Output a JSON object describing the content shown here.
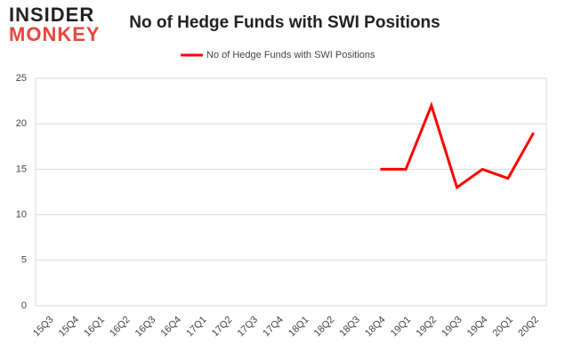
{
  "logo": {
    "top": "INSIDER",
    "bottom": "MONKEY"
  },
  "chart_data": {
    "type": "line",
    "title": "No of Hedge Funds with SWI Positions",
    "categories": [
      "15Q3",
      "15Q4",
      "16Q1",
      "16Q2",
      "16Q3",
      "16Q4",
      "17Q1",
      "17Q2",
      "17Q3",
      "17Q4",
      "18Q1",
      "18Q2",
      "18Q3",
      "18Q4",
      "19Q1",
      "19Q2",
      "19Q3",
      "19Q4",
      "20Q1",
      "20Q2"
    ],
    "series": [
      {
        "name": "No of Hedge Funds with SWI Positions",
        "color": "#ff0000",
        "values": [
          null,
          null,
          null,
          null,
          null,
          null,
          null,
          null,
          null,
          null,
          null,
          null,
          null,
          15,
          15,
          22,
          13,
          15,
          14,
          19
        ]
      }
    ],
    "ylim": [
      0,
      25
    ],
    "yticks": [
      0,
      5,
      10,
      15,
      20,
      25
    ],
    "grid": true,
    "legend": "top"
  }
}
